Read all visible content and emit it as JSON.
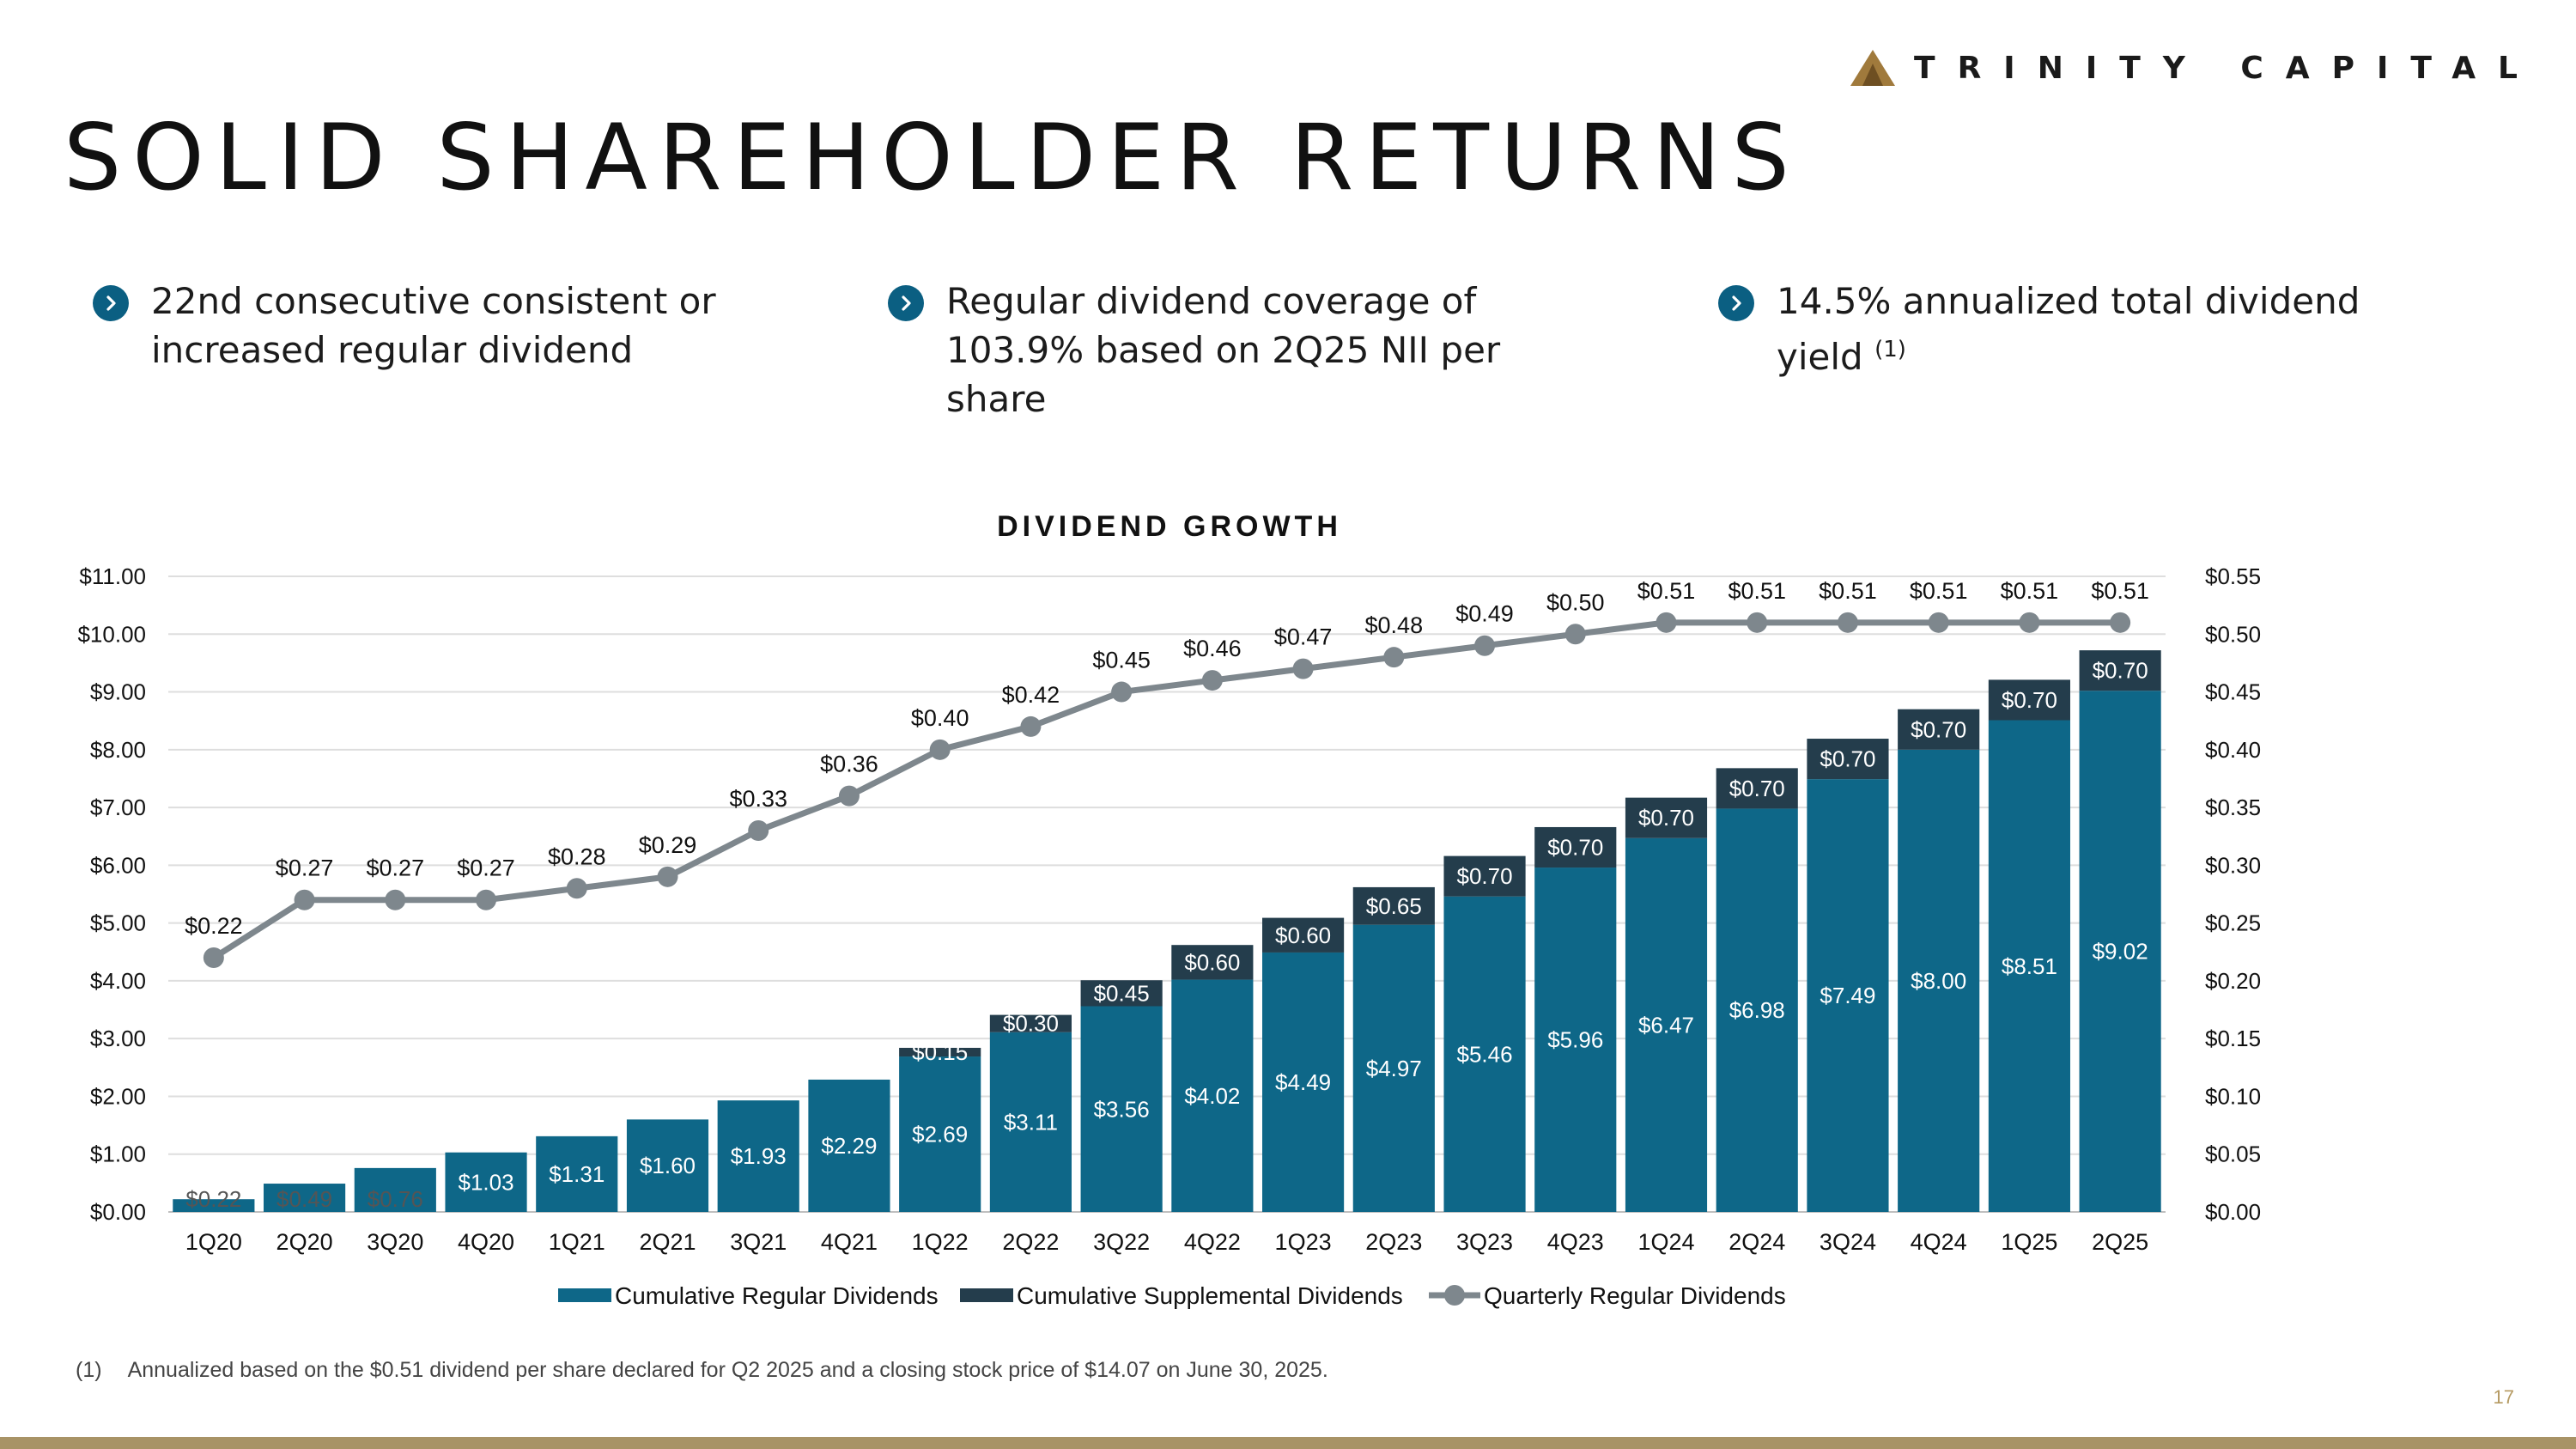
{
  "brand": {
    "name": "TRINITY CAPITAL",
    "accent": "#a07a3c"
  },
  "page_title": "SOLID SHAREHOLDER RETURNS",
  "bullets": [
    {
      "text": "22nd consecutive consistent or increased regular dividend"
    },
    {
      "text": "Regular dividend coverage of 103.9% based on 2Q25 NII per share"
    },
    {
      "text": "14.5% annualized total dividend yield",
      "sup": "(1)"
    }
  ],
  "chart_data": {
    "type": "bar",
    "title": "DIVIDEND GROWTH",
    "categories": [
      "1Q20",
      "2Q20",
      "3Q20",
      "4Q20",
      "1Q21",
      "2Q21",
      "3Q21",
      "4Q21",
      "1Q22",
      "2Q22",
      "3Q22",
      "4Q22",
      "1Q23",
      "2Q23",
      "3Q23",
      "4Q23",
      "1Q24",
      "2Q24",
      "3Q24",
      "4Q24",
      "1Q25",
      "2Q25"
    ],
    "series": [
      {
        "name": "Cumulative Regular Dividends",
        "kind": "stacked-bar",
        "axis": "left",
        "color": "#0e6788",
        "values": [
          0.22,
          0.49,
          0.76,
          1.03,
          1.31,
          1.6,
          1.93,
          2.29,
          2.69,
          3.11,
          3.56,
          4.02,
          4.49,
          4.97,
          5.46,
          5.96,
          6.47,
          6.98,
          7.49,
          8.0,
          8.51,
          9.02
        ],
        "labels": [
          "$0.22",
          "$0.49",
          "$0.76",
          "$1.03",
          "$1.31",
          "$1.60",
          "$1.93",
          "$2.29",
          "$2.69",
          "$3.11",
          "$3.56",
          "$4.02",
          "$4.49",
          "$4.97",
          "$5.46",
          "$5.96",
          "$6.47",
          "$6.98",
          "$7.49",
          "$8.00",
          "$8.51",
          "$9.02"
        ]
      },
      {
        "name": "Cumulative Supplemental Dividends",
        "kind": "stacked-bar",
        "axis": "left",
        "color": "#243d4c",
        "values": [
          0,
          0,
          0,
          0,
          0,
          0,
          0,
          0,
          0.15,
          0.3,
          0.45,
          0.6,
          0.6,
          0.65,
          0.7,
          0.7,
          0.7,
          0.7,
          0.7,
          0.7,
          0.7,
          0.7
        ],
        "labels": [
          "",
          "",
          "",
          "",
          "",
          "",
          "",
          "",
          "$0.15",
          "$0.30",
          "$0.45",
          "$0.60",
          "$0.60",
          "$0.65",
          "$0.70",
          "$0.70",
          "$0.70",
          "$0.70",
          "$0.70",
          "$0.70",
          "$0.70",
          "$0.70"
        ]
      },
      {
        "name": "Quarterly Regular Dividends",
        "kind": "line",
        "axis": "right",
        "color": "#7e878d",
        "values": [
          0.22,
          0.27,
          0.27,
          0.27,
          0.28,
          0.29,
          0.33,
          0.36,
          0.4,
          0.42,
          0.45,
          0.46,
          0.47,
          0.48,
          0.49,
          0.5,
          0.51,
          0.51,
          0.51,
          0.51,
          0.51,
          0.51
        ],
        "labels": [
          "$0.22",
          "$0.27",
          "$0.27",
          "$0.27",
          "$0.28",
          "$0.29",
          "$0.33",
          "$0.36",
          "$0.40",
          "$0.42",
          "$0.45",
          "$0.46",
          "$0.47",
          "$0.48",
          "$0.49",
          "$0.50",
          "$0.51",
          "$0.51",
          "$0.51",
          "$0.51",
          "$0.51",
          "$0.51"
        ]
      }
    ],
    "y_left": {
      "min": 0,
      "max": 11,
      "ticks": [
        "$0.00",
        "$1.00",
        "$2.00",
        "$3.00",
        "$4.00",
        "$5.00",
        "$6.00",
        "$7.00",
        "$8.00",
        "$9.00",
        "$10.00",
        "$11.00"
      ]
    },
    "y_right": {
      "min": 0,
      "max": 0.55,
      "ticks": [
        "$0.00",
        "$0.05",
        "$0.10",
        "$0.15",
        "$0.20",
        "$0.25",
        "$0.30",
        "$0.35",
        "$0.40",
        "$0.45",
        "$0.50",
        "$0.55"
      ]
    },
    "grid": true,
    "legend_position": "bottom"
  },
  "footnote": {
    "number": "(1)",
    "text": "Annualized based on the $0.51 dividend per share declared for Q2 2025 and a closing stock price of $14.07 on June 30, 2025."
  },
  "page_number": "17"
}
